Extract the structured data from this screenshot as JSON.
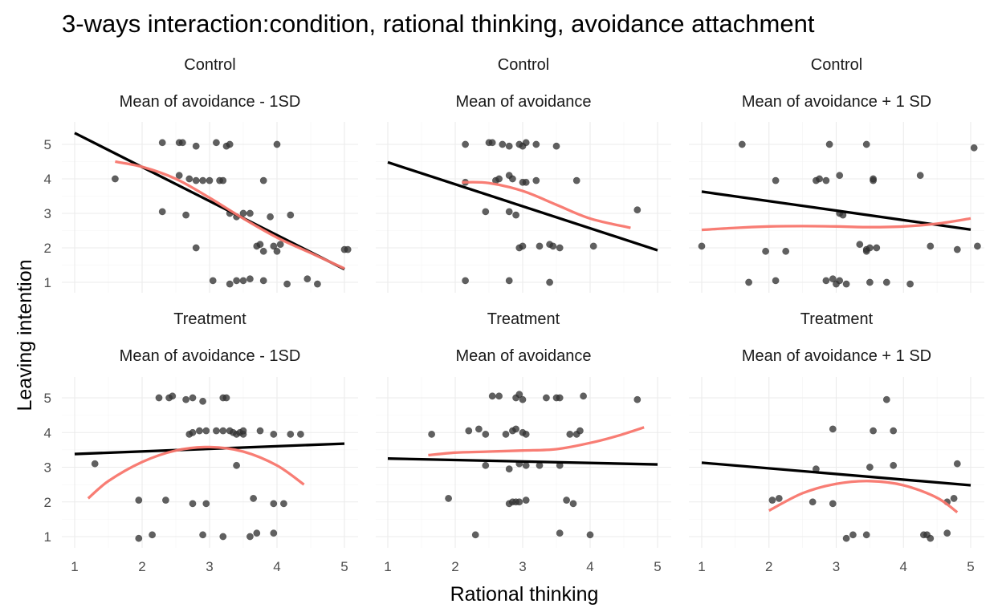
{
  "chart_data": {
    "type": "scatter",
    "title": "3-ways interaction:condition, rational thinking, avoidance attachment",
    "xlabel": "Rational thinking",
    "ylabel": "Leaving intention",
    "xlim": [
      1,
      5
    ],
    "ylim": [
      0.7,
      5.6
    ],
    "xticks": [
      "1",
      "2",
      "3",
      "4",
      "5"
    ],
    "yticks": [
      "1",
      "2",
      "3",
      "4",
      "5"
    ],
    "grid": true,
    "colors": {
      "points": "#333333",
      "linear_fit": "#000000",
      "smooth_fit": "#f8766d"
    },
    "panels": [
      {
        "condition": "Control",
        "avoidance": "Mean of avoidance - 1SD",
        "linear_fit": [
          [
            1.0,
            5.33
          ],
          [
            5.0,
            1.38
          ]
        ],
        "smooth_fit": [
          [
            1.6,
            4.5
          ],
          [
            2.0,
            4.35
          ],
          [
            2.5,
            4.0
          ],
          [
            3.0,
            3.45
          ],
          [
            3.5,
            2.85
          ],
          [
            4.0,
            2.3
          ],
          [
            4.5,
            1.85
          ],
          [
            5.0,
            1.4
          ]
        ],
        "points": [
          [
            1.6,
            4.0
          ],
          [
            2.3,
            5.05
          ],
          [
            2.55,
            5.05
          ],
          [
            2.6,
            5.05
          ],
          [
            2.8,
            4.95
          ],
          [
            3.1,
            5.05
          ],
          [
            3.25,
            4.95
          ],
          [
            3.3,
            5.0
          ],
          [
            4.0,
            5.0
          ],
          [
            2.55,
            4.1
          ],
          [
            2.7,
            4.0
          ],
          [
            2.8,
            3.95
          ],
          [
            2.9,
            3.95
          ],
          [
            3.0,
            3.95
          ],
          [
            3.15,
            3.95
          ],
          [
            3.2,
            3.95
          ],
          [
            3.8,
            3.95
          ],
          [
            2.3,
            3.05
          ],
          [
            2.65,
            2.95
          ],
          [
            3.3,
            3.0
          ],
          [
            3.4,
            2.9
          ],
          [
            3.5,
            3.0
          ],
          [
            3.6,
            3.0
          ],
          [
            3.9,
            2.9
          ],
          [
            4.2,
            2.95
          ],
          [
            2.8,
            2.0
          ],
          [
            3.7,
            2.05
          ],
          [
            3.75,
            2.1
          ],
          [
            3.8,
            1.9
          ],
          [
            3.95,
            2.05
          ],
          [
            4.0,
            1.9
          ],
          [
            4.05,
            2.1
          ],
          [
            5.0,
            1.95
          ],
          [
            5.05,
            1.95
          ],
          [
            3.05,
            1.05
          ],
          [
            3.3,
            0.95
          ],
          [
            3.4,
            1.05
          ],
          [
            3.5,
            1.05
          ],
          [
            3.6,
            1.1
          ],
          [
            3.8,
            1.05
          ],
          [
            4.15,
            0.95
          ],
          [
            4.45,
            1.1
          ],
          [
            4.6,
            0.95
          ]
        ]
      },
      {
        "condition": "Control",
        "avoidance": "Mean of avoidance",
        "linear_fit": [
          [
            1.0,
            4.48
          ],
          [
            5.0,
            1.93
          ]
        ],
        "smooth_fit": [
          [
            2.1,
            3.9
          ],
          [
            2.5,
            3.88
          ],
          [
            3.0,
            3.65
          ],
          [
            3.5,
            3.25
          ],
          [
            4.0,
            2.85
          ],
          [
            4.6,
            2.58
          ]
        ],
        "points": [
          [
            2.15,
            5.0
          ],
          [
            2.5,
            5.05
          ],
          [
            2.55,
            5.05
          ],
          [
            2.7,
            5.0
          ],
          [
            2.8,
            4.95
          ],
          [
            2.95,
            5.0
          ],
          [
            3.0,
            4.95
          ],
          [
            3.05,
            5.05
          ],
          [
            3.2,
            5.0
          ],
          [
            3.5,
            4.95
          ],
          [
            2.15,
            3.9
          ],
          [
            2.6,
            3.95
          ],
          [
            2.65,
            4.0
          ],
          [
            2.8,
            4.1
          ],
          [
            2.85,
            4.0
          ],
          [
            3.0,
            3.9
          ],
          [
            3.05,
            3.9
          ],
          [
            3.2,
            3.95
          ],
          [
            3.8,
            3.95
          ],
          [
            2.45,
            3.05
          ],
          [
            2.8,
            3.05
          ],
          [
            2.9,
            2.95
          ],
          [
            4.7,
            3.1
          ],
          [
            2.95,
            2.0
          ],
          [
            3.0,
            2.05
          ],
          [
            3.25,
            2.05
          ],
          [
            3.4,
            2.1
          ],
          [
            3.45,
            2.05
          ],
          [
            3.55,
            2.0
          ],
          [
            4.05,
            2.05
          ],
          [
            2.15,
            1.05
          ],
          [
            2.8,
            1.05
          ],
          [
            3.4,
            1.0
          ]
        ]
      },
      {
        "condition": "Control",
        "avoidance": "Mean of avoidance + 1 SD",
        "linear_fit": [
          [
            1.0,
            3.63
          ],
          [
            5.0,
            2.53
          ]
        ],
        "smooth_fit": [
          [
            1.0,
            2.52
          ],
          [
            1.5,
            2.58
          ],
          [
            2.0,
            2.62
          ],
          [
            2.5,
            2.63
          ],
          [
            3.0,
            2.62
          ],
          [
            3.5,
            2.6
          ],
          [
            4.0,
            2.62
          ],
          [
            4.5,
            2.7
          ],
          [
            5.0,
            2.85
          ]
        ],
        "points": [
          [
            1.6,
            5.0
          ],
          [
            2.9,
            5.0
          ],
          [
            3.45,
            5.0
          ],
          [
            5.05,
            4.9
          ],
          [
            2.1,
            3.95
          ],
          [
            2.7,
            3.95
          ],
          [
            2.75,
            4.0
          ],
          [
            2.85,
            3.95
          ],
          [
            3.05,
            4.1
          ],
          [
            3.55,
            3.95
          ],
          [
            3.55,
            4.0
          ],
          [
            4.25,
            4.1
          ],
          [
            3.05,
            3.0
          ],
          [
            3.1,
            2.95
          ],
          [
            1.0,
            2.05
          ],
          [
            1.95,
            1.9
          ],
          [
            2.25,
            1.9
          ],
          [
            3.35,
            2.1
          ],
          [
            3.45,
            1.95
          ],
          [
            3.45,
            1.9
          ],
          [
            3.5,
            2.0
          ],
          [
            3.6,
            2.0
          ],
          [
            4.4,
            2.05
          ],
          [
            4.8,
            1.95
          ],
          [
            5.1,
            2.05
          ],
          [
            1.7,
            1.0
          ],
          [
            2.1,
            1.05
          ],
          [
            2.85,
            1.05
          ],
          [
            2.95,
            1.1
          ],
          [
            3.0,
            0.95
          ],
          [
            3.05,
            1.05
          ],
          [
            3.15,
            0.95
          ],
          [
            3.5,
            1.0
          ],
          [
            3.75,
            1.0
          ],
          [
            4.1,
            0.95
          ]
        ]
      },
      {
        "condition": "Treatment",
        "avoidance": "Mean of avoidance - 1SD",
        "linear_fit": [
          [
            1.0,
            3.38
          ],
          [
            5.0,
            3.68
          ]
        ],
        "smooth_fit": [
          [
            1.2,
            2.1
          ],
          [
            1.5,
            2.6
          ],
          [
            2.0,
            3.15
          ],
          [
            2.5,
            3.48
          ],
          [
            3.0,
            3.58
          ],
          [
            3.5,
            3.45
          ],
          [
            4.0,
            3.05
          ],
          [
            4.4,
            2.5
          ]
        ],
        "points": [
          [
            2.25,
            5.0
          ],
          [
            2.4,
            5.0
          ],
          [
            2.45,
            5.05
          ],
          [
            2.65,
            4.95
          ],
          [
            2.75,
            5.0
          ],
          [
            2.9,
            4.9
          ],
          [
            3.2,
            5.0
          ],
          [
            3.25,
            5.0
          ],
          [
            2.7,
            3.95
          ],
          [
            2.75,
            4.0
          ],
          [
            2.85,
            4.05
          ],
          [
            2.95,
            4.05
          ],
          [
            3.1,
            4.05
          ],
          [
            3.2,
            4.05
          ],
          [
            3.3,
            4.05
          ],
          [
            3.35,
            4.0
          ],
          [
            3.4,
            3.95
          ],
          [
            3.45,
            4.0
          ],
          [
            3.5,
            3.95
          ],
          [
            3.5,
            4.05
          ],
          [
            3.75,
            4.05
          ],
          [
            3.95,
            3.95
          ],
          [
            4.2,
            3.95
          ],
          [
            4.35,
            3.95
          ],
          [
            1.3,
            3.1
          ],
          [
            3.4,
            3.05
          ],
          [
            1.95,
            2.05
          ],
          [
            2.35,
            2.05
          ],
          [
            2.75,
            1.95
          ],
          [
            2.95,
            1.95
          ],
          [
            3.65,
            2.1
          ],
          [
            3.95,
            1.95
          ],
          [
            4.1,
            1.95
          ],
          [
            1.95,
            0.95
          ],
          [
            2.15,
            1.05
          ],
          [
            2.9,
            1.05
          ],
          [
            3.2,
            1.0
          ],
          [
            3.6,
            1.0
          ],
          [
            3.7,
            1.1
          ],
          [
            3.95,
            1.1
          ]
        ]
      },
      {
        "condition": "Treatment",
        "avoidance": "Mean of avoidance",
        "linear_fit": [
          [
            1.0,
            3.25
          ],
          [
            5.0,
            3.08
          ]
        ],
        "smooth_fit": [
          [
            1.6,
            3.35
          ],
          [
            2.0,
            3.42
          ],
          [
            2.5,
            3.45
          ],
          [
            3.0,
            3.48
          ],
          [
            3.5,
            3.52
          ],
          [
            4.0,
            3.7
          ],
          [
            4.4,
            3.9
          ],
          [
            4.8,
            4.15
          ]
        ],
        "points": [
          [
            2.55,
            5.05
          ],
          [
            2.65,
            5.05
          ],
          [
            2.9,
            5.0
          ],
          [
            2.95,
            5.1
          ],
          [
            3.0,
            4.95
          ],
          [
            3.35,
            5.0
          ],
          [
            3.5,
            5.0
          ],
          [
            3.55,
            5.0
          ],
          [
            3.9,
            5.05
          ],
          [
            4.7,
            4.95
          ],
          [
            1.65,
            3.95
          ],
          [
            2.2,
            4.05
          ],
          [
            2.35,
            4.1
          ],
          [
            2.45,
            3.95
          ],
          [
            2.75,
            3.95
          ],
          [
            2.85,
            4.05
          ],
          [
            2.9,
            4.1
          ],
          [
            3.0,
            4.0
          ],
          [
            3.05,
            3.95
          ],
          [
            3.7,
            3.95
          ],
          [
            3.8,
            3.95
          ],
          [
            3.85,
            4.05
          ],
          [
            2.45,
            3.05
          ],
          [
            2.8,
            2.95
          ],
          [
            2.95,
            3.1
          ],
          [
            3.05,
            3.05
          ],
          [
            3.25,
            3.05
          ],
          [
            3.55,
            3.05
          ],
          [
            1.9,
            2.1
          ],
          [
            2.8,
            1.95
          ],
          [
            2.85,
            2.0
          ],
          [
            2.9,
            2.0
          ],
          [
            2.95,
            2.0
          ],
          [
            3.05,
            2.05
          ],
          [
            3.65,
            2.05
          ],
          [
            3.75,
            1.95
          ],
          [
            2.3,
            1.05
          ],
          [
            3.55,
            1.1
          ],
          [
            4.0,
            1.05
          ]
        ]
      },
      {
        "condition": "Treatment",
        "avoidance": "Mean of avoidance + 1 SD",
        "linear_fit": [
          [
            1.0,
            3.13
          ],
          [
            5.0,
            2.48
          ]
        ],
        "smooth_fit": [
          [
            2.0,
            1.75
          ],
          [
            2.5,
            2.25
          ],
          [
            3.0,
            2.52
          ],
          [
            3.5,
            2.6
          ],
          [
            4.0,
            2.48
          ],
          [
            4.5,
            2.12
          ],
          [
            4.8,
            1.7
          ]
        ],
        "points": [
          [
            3.75,
            4.95
          ],
          [
            2.95,
            4.1
          ],
          [
            3.55,
            4.05
          ],
          [
            3.85,
            4.05
          ],
          [
            4.8,
            3.1
          ],
          [
            2.7,
            2.95
          ],
          [
            3.5,
            3.0
          ],
          [
            3.85,
            3.05
          ],
          [
            2.05,
            2.05
          ],
          [
            2.15,
            2.1
          ],
          [
            2.65,
            2.0
          ],
          [
            2.95,
            1.95
          ],
          [
            4.65,
            2.0
          ],
          [
            4.75,
            2.1
          ],
          [
            3.15,
            0.95
          ],
          [
            3.25,
            1.05
          ],
          [
            3.45,
            1.05
          ],
          [
            4.3,
            1.05
          ],
          [
            4.35,
            1.05
          ],
          [
            4.4,
            0.95
          ],
          [
            4.65,
            1.1
          ]
        ]
      }
    ]
  }
}
